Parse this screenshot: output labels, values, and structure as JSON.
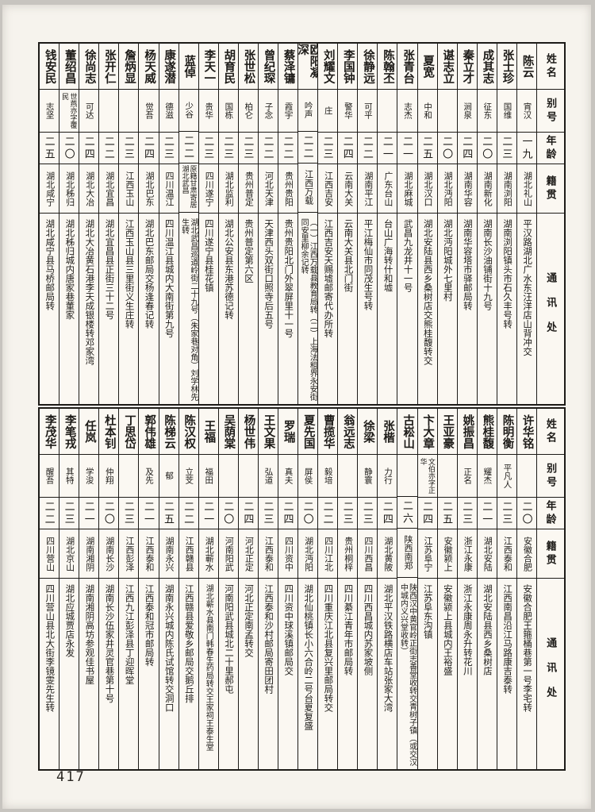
{
  "page": {
    "number": "417",
    "paper_color": "#f6f3ed",
    "ink_color": "#1d1b18"
  },
  "row_headers": {
    "name": "姓名",
    "alias": "别号",
    "age": "年龄",
    "native": "籍贯",
    "address": "通讯处"
  },
  "tables": [
    {
      "people": [
        {
          "name": "陈云",
          "alias": "宵汉",
          "age": "一九",
          "native": "湖北礼山",
          "address": "平汉路湖北广水东汪洋店山背冲交"
        },
        {
          "name": "张士珍",
          "alias": "国维",
          "age": "二三",
          "native": "湖南浏阳",
          "address": "湖南浏阳镇头市石久丰号转"
        },
        {
          "name": "成其志",
          "alias": "征东",
          "age": "二〇",
          "native": "湖南新化",
          "address": "湖南长沙油铺街十九号"
        },
        {
          "name": "秦立才",
          "alias": "涧泉",
          "age": "二四",
          "native": "湖南华容",
          "address": "湖南华容塔市驿邮局转"
        },
        {
          "name": "谌志立",
          "alias": "",
          "age": "二〇",
          "native": "湖北沔阳",
          "address": "湖北沔阳城外七里村"
        },
        {
          "name": "夏宽",
          "alias": "中和",
          "age": "二五",
          "native": "湖北汉口",
          "address": "湖北安陆县西乡桑树店交熊桂馥转交"
        },
        {
          "name": "张青台",
          "alias": "志杰",
          "age": "二一",
          "native": "湖北麻城",
          "address": "武昌九龙井十一号"
        },
        {
          "name": "陈翰丕",
          "alias": "",
          "age": "二一",
          "native": "广东台山",
          "address": "台山广海转什和墟"
        },
        {
          "name": "徐静远",
          "alias": "可平",
          "age": "二二",
          "native": "湖南平江",
          "address": "平江梅仙市同茂生号转"
        },
        {
          "name": "李国钟",
          "alias": "警华",
          "age": "二四",
          "native": "云南大关",
          "address": "云南大关县北门街"
        },
        {
          "name": "刘耀文",
          "alias": "庄",
          "age": "二三",
          "native": "江西吉安",
          "address": "江西吉安天赐墟邮寄代办所转"
        },
        {
          "name": "欧阳凝深",
          "alias": "吟声",
          "age": "二二",
          "native": "江西万载",
          "address": "（一）江西万载县教育局转（二）上海法租界永安街同安里柳余记转"
        },
        {
          "name": "蔡泽镛",
          "alias": "霞宇",
          "age": "二二",
          "native": "贵州贵阳",
          "address": "贵州贵阳北门外翠屏里十一号"
        },
        {
          "name": "曾纪琛",
          "alias": "子念",
          "age": "二二",
          "native": "河北天津",
          "address": "天津西头双街口照寺后五号"
        },
        {
          "name": "张世松",
          "alias": "柏仑",
          "age": "二三",
          "native": "贵州普定",
          "address": "贵州普定第六区"
        },
        {
          "name": "胡育民",
          "alias": "国栋",
          "age": "二三",
          "native": "湖北监利",
          "address": "湖北公安县东港苏德记转"
        },
        {
          "name": "李天一",
          "alias": "贵华",
          "age": "二三",
          "native": "四川遂宁",
          "address": "四川遂宁县桂花镇"
        },
        {
          "name": "蓝倬",
          "alias": "少谷",
          "age": "二二",
          "native": "原籍甘肃寄居湖北武昌",
          "address": "湖北武昌巡道岭街二十九号（朱家巷对角）刘学林先生转"
        },
        {
          "name": "康遂潜",
          "alias": "德滋",
          "age": "二三",
          "native": "四川温江",
          "address": "四川温江县城内大南街第九号"
        },
        {
          "name": "杨天威",
          "alias": "觉吾",
          "age": "二四",
          "native": "湖北巴东",
          "address": "湖北巴东邮局交杨逢春记转"
        },
        {
          "name": "詹炳显",
          "alias": "",
          "age": "二三",
          "native": "江西玉山",
          "address": "江西玉山县三里街义生庄转"
        },
        {
          "name": "张开仁",
          "alias": "",
          "age": "二二",
          "native": "湖北宜昌",
          "address": "湖北宜昌县正街三十二号"
        },
        {
          "name": "徐尚志",
          "alias": "可达",
          "age": "二四",
          "native": "湖北大冶",
          "address": "湖北大冶黄石港李天成银楼转邓家湾"
        },
        {
          "name": "董绍昌",
          "alias": "世燕亦字覆民",
          "age": "二〇",
          "native": "湖北秭归",
          "address": "湖北秭归城内唐家巷董家"
        },
        {
          "name": "钱安民",
          "alias": "志坚",
          "age": "二五",
          "native": "湖北咸宁",
          "address": "湖北咸宁县马桥邮局转"
        }
      ]
    },
    {
      "people": [
        {
          "name": "许华铭",
          "alias": "",
          "age": "二〇",
          "native": "安徽合肥",
          "address": "安徽合肥王箍桶巷第一号李宅转"
        },
        {
          "name": "陈明衡",
          "alias": "平凡人",
          "age": "二三",
          "native": "江西泰和",
          "address": "江西南昌沿江马路康吉泰转"
        },
        {
          "name": "熊桂馥",
          "alias": "耀杰",
          "age": "二一",
          "native": "湖北安陆",
          "address": "湖北安陆县西乡桑树店"
        },
        {
          "name": "姚振昌",
          "alias": "正名",
          "age": "二三",
          "native": "浙江永康",
          "address": "浙江永康周永升转花川"
        },
        {
          "name": "王亚豪",
          "alias": "",
          "age": "二五",
          "native": "安徽颍上",
          "address": "安徽颍上县城内王裕盛"
        },
        {
          "name": "卞大章",
          "alias": "文伯亦字正华",
          "age": "二四",
          "native": "江苏阜宁",
          "address": "江苏阜东沟镇"
        },
        {
          "name": "古崧山",
          "alias": "",
          "age": "二六",
          "native": "陕西南郑",
          "address": "陕西汉中黄官岭正街志善堂收转交青树子镇（或交汉中城内义兴堂收转）"
        },
        {
          "name": "张楷",
          "alias": "力行",
          "age": "二四",
          "native": "湖北黄陂",
          "address": "湖北平汉铁路横店车站张家大湾"
        },
        {
          "name": "徐梁",
          "alias": "静寰",
          "age": "二三",
          "native": "四川西昌",
          "address": "四川西昌城内苏家坡侧"
        },
        {
          "name": "翁远志",
          "alias": "",
          "age": "二三",
          "native": "贵州桐梓",
          "address": "四川綦江青年市邮局转"
        },
        {
          "name": "曹揽华",
          "alias": "毅培",
          "age": "二二",
          "native": "四川江北",
          "address": "四川重庆江北县复兴里邮局转交"
        },
        {
          "name": "夏先国",
          "alias": "屏侯",
          "age": "二〇",
          "native": "湖北沔阳",
          "address": "湖北仙桃镇长小六合岭二号台夏复盛"
        },
        {
          "name": "罗瑞",
          "alias": "真夫",
          "age": "二四",
          "native": "四川资中",
          "address": "四川资中球溪镇邮局交"
        },
        {
          "name": "王文果",
          "alias": "弘道",
          "age": "二三",
          "native": "江西泰和",
          "address": "江西泰和沙村邮局寄田团村"
        },
        {
          "name": "杨世伟",
          "alias": "",
          "age": "二四",
          "native": "河北正定",
          "address": "河北正定南孟转交"
        },
        {
          "name": "吴荫棠",
          "alias": "",
          "age": "二〇",
          "native": "河南阳武",
          "address": "河南阳武县城北二十里郝屯"
        },
        {
          "name": "王福",
          "alias": "福田",
          "age": "二一",
          "native": "湖北蕲水",
          "address": "湖北蕲水县南门韩春生药局转交王家祠王泰生堂"
        },
        {
          "name": "陈汉权",
          "alias": "立芠",
          "age": "二二",
          "native": "江西赣县",
          "address": "江西赣县爱敬乡邮局交鹅丘排"
        },
        {
          "name": "陈梯云",
          "alias": "郁",
          "age": "二五",
          "native": "湖南永兴",
          "address": "湖南永兴城内陈氏试馆转交洞口"
        },
        {
          "name": "郭伟雄",
          "alias": "及先",
          "age": "二一",
          "native": "江西泰和",
          "address": "江西泰和冠市邮局转"
        },
        {
          "name": "丁思岱",
          "alias": "",
          "age": "二三",
          "native": "江西彭泽",
          "address": "江西九江彭泽县丁迎晖堂"
        },
        {
          "name": "杜本钊",
          "alias": "仲翔",
          "age": "二〇",
          "native": "湖南长沙",
          "address": "湖南长沙伍家井灵官巷第十号"
        },
        {
          "name": "任岚",
          "alias": "学浚",
          "age": "二一",
          "native": "湖南湘阴",
          "address": "湖南湘阴高坊参观佳书屋"
        },
        {
          "name": "李笔戎",
          "alias": "其特",
          "age": "二三",
          "native": "湖北京山",
          "address": "湖北应城贾店永发"
        },
        {
          "name": "李茂华",
          "alias": "醒吾",
          "age": "二二",
          "native": "四川营山",
          "address": "四川营山县北大街李镜雯先生转"
        }
      ]
    }
  ]
}
